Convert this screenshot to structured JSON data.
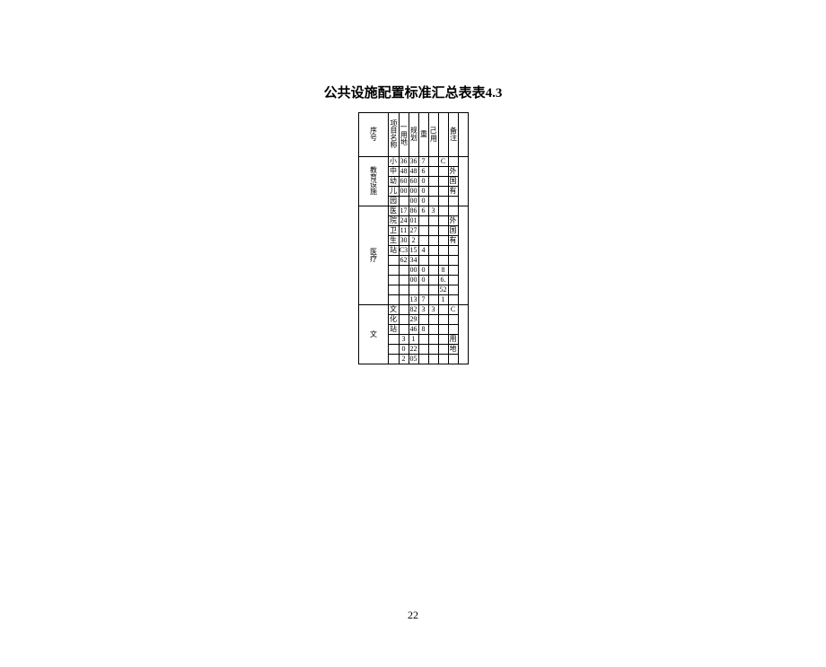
{
  "title": "公共设施配置标准汇总表表4.3",
  "page_number": "22",
  "headers": {
    "h1": "序号",
    "h2": "项目名称",
    "h3_top": "一",
    "h3": "用地",
    "h4": "规划",
    "h5": "重",
    "h6_top": "己",
    "h6": "用",
    "h7": "",
    "h8": "备注"
  },
  "group1": {
    "seq_label": "教育设施",
    "r1": {
      "name": "小",
      "a": "36",
      "b": "36",
      "b2": "7",
      "c": "",
      "d": "C",
      "e": ""
    },
    "r2": {
      "name": "中",
      "a": "48",
      "b": "48",
      "b2": "6",
      "c": "",
      "d": "",
      "e": "外"
    },
    "r3": {
      "name": "幼",
      "a": "60",
      "b": "60",
      "b2": "0",
      "c": "",
      "d": "",
      "e": "国"
    },
    "r4": {
      "name": "儿",
      "a": "00",
      "b": "00",
      "b2": "0",
      "c": "",
      "d": "",
      "e": "有"
    },
    "r5": {
      "name": "园",
      "a": "",
      "b": "00",
      "b2": "0",
      "c": "",
      "d": "",
      "e": ""
    }
  },
  "group2": {
    "seq_label": "医疗",
    "r1": {
      "name": "医",
      "a": "17",
      "b": "86",
      "b2": "6",
      "c": "3",
      "d": "",
      "e": ""
    },
    "r2": {
      "name": "院",
      "a": "24",
      "b": "01",
      "b2": "",
      "c": "",
      "d": "",
      "e": "外"
    },
    "r3": {
      "name": "卫",
      "a": "11",
      "b": "27",
      "b2": "",
      "c": "",
      "d": "",
      "e": "国"
    },
    "r4": {
      "name": "生",
      "a": "30",
      "b": "2",
      "b2": "",
      "c": "",
      "d": "",
      "e": "有"
    },
    "r5": {
      "name": "站",
      "a": "C3",
      "b": "15",
      "b2": "4",
      "c": "",
      "d": "",
      "e": ""
    },
    "r6": {
      "name": "",
      "a": "62",
      "b": "34",
      "b2": "",
      "c": "",
      "d": "",
      "e": ""
    },
    "r7": {
      "name": "",
      "a": "",
      "b": "00",
      "b2": "0",
      "c": "",
      "d": "8",
      "e": ""
    },
    "r8": {
      "name": "",
      "a": "",
      "b": "00",
      "b2": "0",
      "c": "",
      "d": "6.",
      "e": ""
    },
    "r9": {
      "name": "",
      "a": "",
      "b": "",
      "b2": "",
      "c": "",
      "d": "52",
      "e": ""
    },
    "r10": {
      "name": "",
      "a": "",
      "b": "13",
      "b2": "7",
      "c": "",
      "d": "1",
      "e": ""
    }
  },
  "group3": {
    "seq_label": "文",
    "r1": {
      "name": "文",
      "a": "",
      "b": "82",
      "b2": "3",
      "c": "3",
      "d": "",
      "e": "C"
    },
    "r2": {
      "name": "化",
      "a": "",
      "b": "29",
      "b2": "",
      "c": "",
      "d": "",
      "e": ""
    },
    "r3": {
      "name": "站",
      "a": "",
      "b": "46",
      "b2": "8",
      "c": "",
      "d": "",
      "e": ""
    },
    "r4": {
      "name": "",
      "a": "3",
      "b": "1",
      "b2": "",
      "c": "",
      "d": "",
      "e": "用"
    },
    "r5": {
      "name": "",
      "a": "0",
      "b": "22",
      "b2": "",
      "c": "",
      "d": "",
      "e": "地"
    },
    "r6": {
      "name": "",
      "a": "2",
      "b": "05",
      "b2": "",
      "c": "",
      "d": "",
      "e": ""
    }
  }
}
